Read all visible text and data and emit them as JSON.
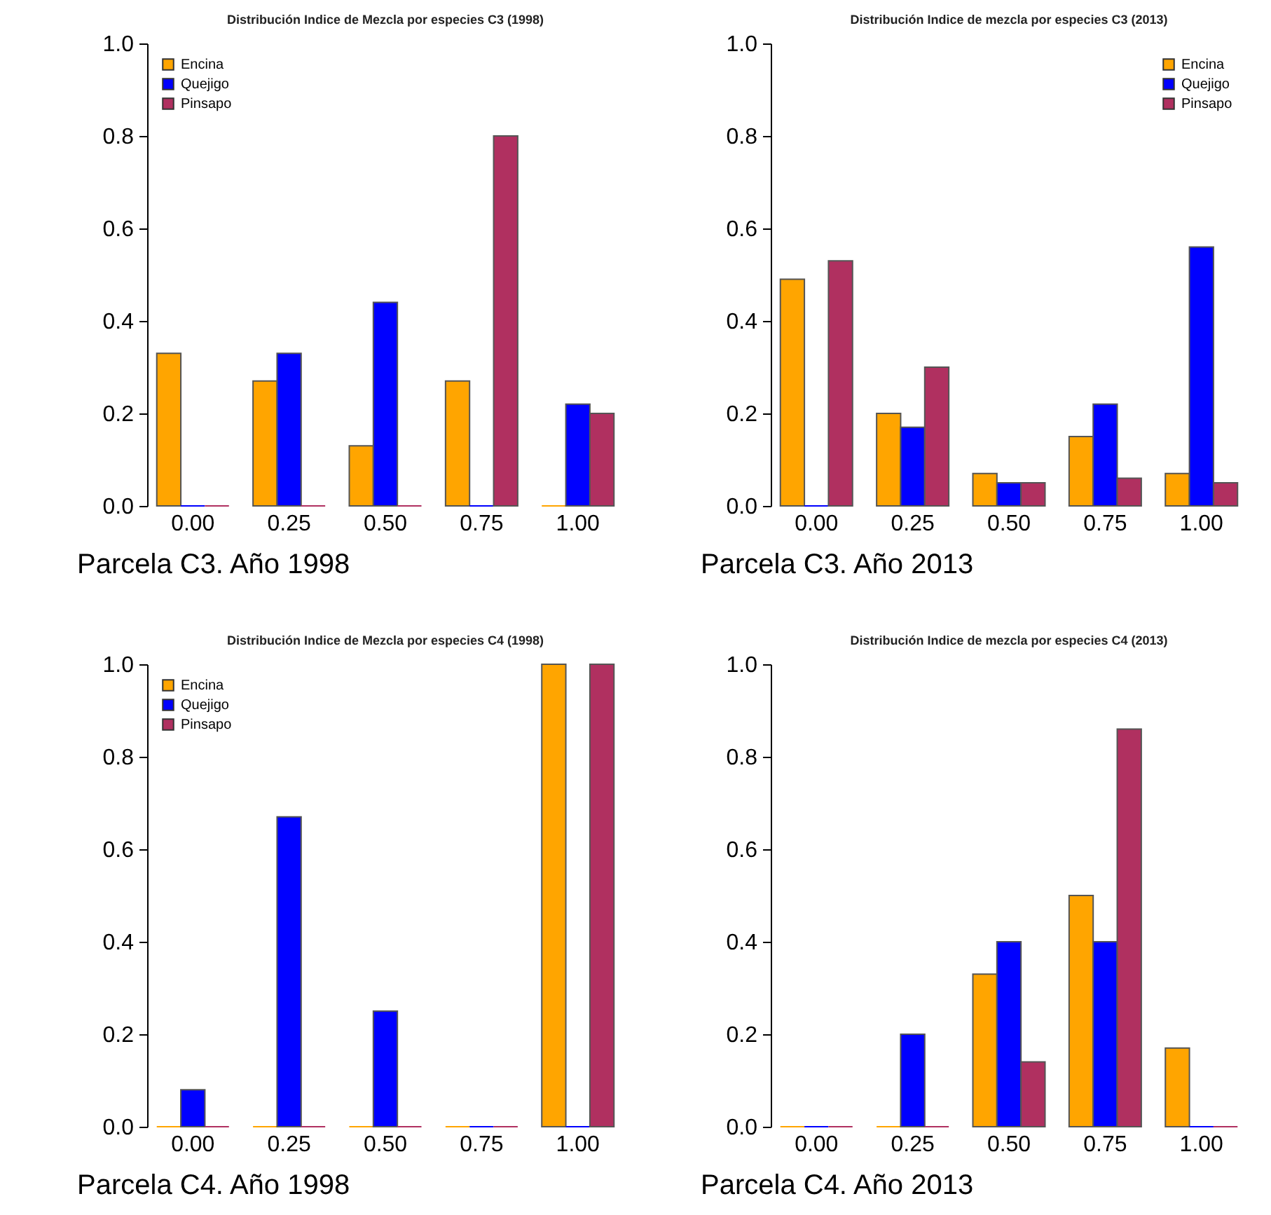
{
  "chart_data": [
    {
      "type": "bar",
      "title": "Distribución Indice de Mezcla por especies C3 (1998)",
      "categories": [
        "0.00",
        "0.25",
        "0.50",
        "0.75",
        "1.00"
      ],
      "legend": "top left",
      "grid": false,
      "ylim": [
        0,
        1
      ],
      "yticks": [
        {
          "value": 0,
          "label": "0.0"
        },
        {
          "value": 0.2,
          "label": "0.2"
        },
        {
          "value": 0.4,
          "label": "0.4"
        },
        {
          "value": 0.6,
          "label": "0.6"
        },
        {
          "value": 0.8,
          "label": "0.8"
        },
        {
          "value": 1,
          "label": "1.0"
        }
      ],
      "annotations": [
        "Parcela C3. Año 1998"
      ],
      "series": [
        {
          "name": "Encina",
          "color": "#ffa500",
          "values": [
            0.33,
            0.27,
            0.13,
            0.27,
            0
          ]
        },
        {
          "name": "Quejigo",
          "color": "#0000ff",
          "values": [
            0,
            0.33,
            0.44,
            0,
            0.22
          ]
        },
        {
          "name": "Pinsapo",
          "color": "#b03060",
          "values": [
            0,
            0,
            0,
            0.8,
            0.2
          ]
        }
      ]
    },
    {
      "type": "bar",
      "title": "Distribución Indice de mezcla por especies C3 (2013)",
      "categories": [
        "0.00",
        "0.25",
        "0.50",
        "0.75",
        "1.00"
      ],
      "legend": "top right",
      "grid": false,
      "ylim": [
        0,
        1
      ],
      "yticks": [
        {
          "value": 0,
          "label": "0.0"
        },
        {
          "value": 0.2,
          "label": "0.2"
        },
        {
          "value": 0.4,
          "label": "0.4"
        },
        {
          "value": 0.6,
          "label": "0.6"
        },
        {
          "value": 0.8,
          "label": "0.8"
        },
        {
          "value": 1,
          "label": "1.0"
        }
      ],
      "annotations": [
        "Parcela C3. Año 2013"
      ],
      "series": [
        {
          "name": "Encina",
          "color": "#ffa500",
          "values": [
            0.49,
            0.2,
            0.07,
            0.15,
            0.07
          ]
        },
        {
          "name": "Quejigo",
          "color": "#0000ff",
          "values": [
            0,
            0.17,
            0.05,
            0.22,
            0.56
          ]
        },
        {
          "name": "Pinsapo",
          "color": "#b03060",
          "values": [
            0.53,
            0.3,
            0.05,
            0.06,
            0.05
          ]
        }
      ]
    },
    {
      "type": "bar",
      "title": "Distribución Indice de Mezcla por especies C4 (1998)",
      "categories": [
        "0.00",
        "0.25",
        "0.50",
        "0.75",
        "1.00"
      ],
      "legend": "top left",
      "grid": false,
      "ylim": [
        0,
        1
      ],
      "yticks": [
        {
          "value": 0,
          "label": "0.0"
        },
        {
          "value": 0.2,
          "label": "0.2"
        },
        {
          "value": 0.4,
          "label": "0.4"
        },
        {
          "value": 0.6,
          "label": "0.6"
        },
        {
          "value": 0.8,
          "label": "0.8"
        },
        {
          "value": 1,
          "label": "1.0"
        }
      ],
      "annotations": [
        "Parcela C4. Año 1998"
      ],
      "series": [
        {
          "name": "Encina",
          "color": "#ffa500",
          "values": [
            0,
            0,
            0,
            0,
            1
          ]
        },
        {
          "name": "Quejigo",
          "color": "#0000ff",
          "values": [
            0.08,
            0.67,
            0.25,
            0,
            0
          ]
        },
        {
          "name": "Pinsapo",
          "color": "#b03060",
          "values": [
            0,
            0,
            0,
            0,
            1
          ]
        }
      ]
    },
    {
      "type": "bar",
      "title": "Distribución Indice de mezcla por especies C4 (2013)",
      "categories": [
        "0.00",
        "0.25",
        "0.50",
        "0.75",
        "1.00"
      ],
      "legend": false,
      "grid": false,
      "ylim": [
        0,
        1
      ],
      "yticks": [
        {
          "value": 0,
          "label": "0.0"
        },
        {
          "value": 0.2,
          "label": "0.2"
        },
        {
          "value": 0.4,
          "label": "0.4"
        },
        {
          "value": 0.6,
          "label": "0.6"
        },
        {
          "value": 0.8,
          "label": "0.8"
        },
        {
          "value": 1,
          "label": "1.0"
        }
      ],
      "annotations": [
        "Parcela C4. Año 2013"
      ],
      "series": [
        {
          "color": "#ffa500",
          "values": [
            0,
            0,
            0.33,
            0.5,
            0.17
          ]
        },
        {
          "color": "#0000ff",
          "values": [
            0,
            0.2,
            0.4,
            0.4,
            0
          ]
        },
        {
          "color": "#b03060",
          "values": [
            0,
            0,
            0.14,
            0.86,
            0
          ]
        }
      ]
    }
  ]
}
